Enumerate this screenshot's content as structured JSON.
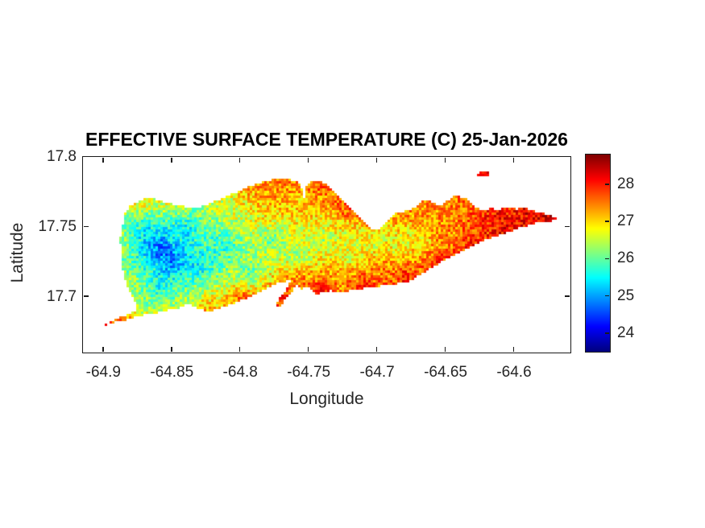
{
  "chart_data": {
    "type": "heatmap",
    "title": "EFFECTIVE SURFACE TEMPERATURE (C) 25-Jan-2026",
    "xlabel": "Longitude",
    "ylabel": "Latitude",
    "units": "C",
    "date": "25-Jan-2026",
    "xlim": [
      -64.9149,
      -64.5588
    ],
    "ylim": [
      17.66,
      17.8
    ],
    "xticks": [
      -64.9,
      -64.85,
      -64.8,
      -64.75,
      -64.7,
      -64.65,
      -64.6
    ],
    "xtick_labels": [
      "-64.9",
      "-64.85",
      "-64.8",
      "-64.75",
      "-64.7",
      "-64.65",
      "-64.6"
    ],
    "yticks": [
      17.7,
      17.75,
      17.8
    ],
    "ytick_labels": [
      "17.7",
      "17.75",
      "17.8"
    ],
    "grid": false,
    "colormap": "jet",
    "colorbar": {
      "min": 23.5,
      "max": 28.8,
      "ticks": [
        24,
        25,
        26,
        27,
        28
      ],
      "tick_labels": [
        "24",
        "25",
        "26",
        "27",
        "28"
      ],
      "position": "right"
    },
    "colors": {
      "background": "#ffffff",
      "axis": "#1a1a1a",
      "text": "#262626",
      "title": "#000000"
    },
    "noise_amplitude_c": 0.55,
    "islands": [
      {
        "outline": [
          [
            -64.8772,
            17.7672
          ],
          [
            -64.8701,
            17.77
          ],
          [
            -64.8625,
            17.77
          ],
          [
            -64.8548,
            17.7677
          ],
          [
            -64.8466,
            17.7654
          ],
          [
            -64.8389,
            17.7643
          ],
          [
            -64.8313,
            17.7637
          ],
          [
            -64.8242,
            17.766
          ],
          [
            -64.8171,
            17.7689
          ],
          [
            -64.81,
            17.7718
          ],
          [
            -64.803,
            17.7747
          ],
          [
            -64.7959,
            17.7781
          ],
          [
            -64.7894,
            17.7804
          ],
          [
            -64.7824,
            17.7827
          ],
          [
            -64.7753,
            17.7839
          ],
          [
            -64.7682,
            17.7844
          ],
          [
            -64.7623,
            17.7833
          ],
          [
            -64.7576,
            17.7816
          ],
          [
            -64.7553,
            17.7781
          ],
          [
            -64.7535,
            17.7706
          ],
          [
            -64.7517,
            17.7787
          ],
          [
            -64.7488,
            17.7816
          ],
          [
            -64.7452,
            17.7833
          ],
          [
            -64.7411,
            17.7821
          ],
          [
            -64.7376,
            17.7804
          ],
          [
            -64.7341,
            17.7775
          ],
          [
            -64.7299,
            17.7735
          ],
          [
            -64.7258,
            17.7695
          ],
          [
            -64.7217,
            17.7654
          ],
          [
            -64.7176,
            17.7614
          ],
          [
            -64.7134,
            17.7574
          ],
          [
            -64.7099,
            17.7533
          ],
          [
            -64.7064,
            17.7499
          ],
          [
            -64.7017,
            17.7482
          ],
          [
            -64.697,
            17.7493
          ],
          [
            -64.6922,
            17.7545
          ],
          [
            -64.6875,
            17.7591
          ],
          [
            -64.6828,
            17.7608
          ],
          [
            -64.6775,
            17.7614
          ],
          [
            -64.6728,
            17.7637
          ],
          [
            -64.6687,
            17.7677
          ],
          [
            -64.6634,
            17.7695
          ],
          [
            -64.6581,
            17.7672
          ],
          [
            -64.6534,
            17.7643
          ],
          [
            -64.6487,
            17.7689
          ],
          [
            -64.6434,
            17.7718
          ],
          [
            -64.6375,
            17.7712
          ],
          [
            -64.6322,
            17.7683
          ],
          [
            -64.6275,
            17.7637
          ],
          [
            -64.6222,
            17.7614
          ],
          [
            -64.6169,
            17.7637
          ],
          [
            -64.611,
            17.762
          ],
          [
            -64.6051,
            17.7643
          ],
          [
            -64.5986,
            17.7626
          ],
          [
            -64.5921,
            17.7637
          ],
          [
            -64.5862,
            17.7614
          ],
          [
            -64.5803,
            17.7603
          ],
          [
            -64.5744,
            17.7585
          ],
          [
            -64.5691,
            17.7562
          ],
          [
            -64.5733,
            17.7539
          ],
          [
            -64.5803,
            17.7539
          ],
          [
            -64.588,
            17.7516
          ],
          [
            -64.5956,
            17.7493
          ],
          [
            -64.6039,
            17.7464
          ],
          [
            -64.6121,
            17.7436
          ],
          [
            -64.6204,
            17.7407
          ],
          [
            -64.6286,
            17.7366
          ],
          [
            -64.6369,
            17.7326
          ],
          [
            -64.6451,
            17.7286
          ],
          [
            -64.6534,
            17.7245
          ],
          [
            -64.6616,
            17.7199
          ],
          [
            -64.6693,
            17.7153
          ],
          [
            -64.6758,
            17.7113
          ],
          [
            -64.6834,
            17.7096
          ],
          [
            -64.6917,
            17.7084
          ],
          [
            -64.6999,
            17.7073
          ],
          [
            -64.7081,
            17.7061
          ],
          [
            -64.7158,
            17.705
          ],
          [
            -64.7229,
            17.7038
          ],
          [
            -64.7282,
            17.7027
          ],
          [
            -64.7335,
            17.7044
          ],
          [
            -64.7394,
            17.7032
          ],
          [
            -64.7447,
            17.7015
          ],
          [
            -64.7494,
            17.7067
          ],
          [
            -64.7553,
            17.7055
          ],
          [
            -64.76,
            17.7101
          ],
          [
            -64.7653,
            17.7113
          ],
          [
            -64.7724,
            17.7096
          ],
          [
            -64.7794,
            17.7067
          ],
          [
            -64.7865,
            17.7032
          ],
          [
            -64.7936,
            17.6992
          ],
          [
            -64.8018,
            17.6963
          ],
          [
            -64.81,
            17.6934
          ],
          [
            -64.8171,
            17.6906
          ],
          [
            -64.8236,
            17.6894
          ],
          [
            -64.8307,
            17.6917
          ],
          [
            -64.8383,
            17.6946
          ],
          [
            -64.8454,
            17.6917
          ],
          [
            -64.8536,
            17.69
          ],
          [
            -64.8619,
            17.6883
          ],
          [
            -64.8689,
            17.6871
          ],
          [
            -64.8754,
            17.686
          ],
          [
            -64.8825,
            17.6836
          ],
          [
            -64.8901,
            17.6819
          ],
          [
            -64.8972,
            17.6802
          ],
          [
            -64.9008,
            17.6785
          ],
          [
            -64.8966,
            17.6813
          ],
          [
            -64.8901,
            17.6842
          ],
          [
            -64.8837,
            17.6865
          ],
          [
            -64.8784,
            17.6888
          ],
          [
            -64.8754,
            17.6917
          ],
          [
            -64.8772,
            17.6963
          ],
          [
            -64.8801,
            17.7015
          ],
          [
            -64.8825,
            17.7073
          ],
          [
            -64.8843,
            17.7136
          ],
          [
            -64.886,
            17.7199
          ],
          [
            -64.8866,
            17.7268
          ],
          [
            -64.8872,
            17.7338
          ],
          [
            -64.8878,
            17.7407
          ],
          [
            -64.8866,
            17.7476
          ],
          [
            -64.8854,
            17.7545
          ],
          [
            -64.8837,
            17.7608
          ],
          [
            -64.8807,
            17.7649
          ]
        ]
      },
      {
        "outline": [
          [
            -64.7617,
            17.7107
          ],
          [
            -64.7588,
            17.7084
          ],
          [
            -64.7635,
            17.7021
          ],
          [
            -64.7682,
            17.6963
          ],
          [
            -64.7718,
            17.6923
          ],
          [
            -64.7747,
            17.6946
          ],
          [
            -64.7694,
            17.7009
          ],
          [
            -64.7653,
            17.7067
          ],
          [
            -64.7641,
            17.7101
          ]
        ]
      },
      {
        "outline": [
          [
            -64.6269,
            17.7873
          ],
          [
            -64.6233,
            17.7896
          ],
          [
            -64.6192,
            17.7891
          ],
          [
            -64.6174,
            17.7873
          ],
          [
            -64.6204,
            17.7856
          ],
          [
            -64.6251,
            17.7856
          ]
        ]
      }
    ],
    "temperature_points": [
      [
        -64.8578,
        17.7338,
        23.9
      ],
      [
        -64.8489,
        17.7251,
        24.2
      ],
      [
        -64.8666,
        17.7424,
        24.6
      ],
      [
        -64.8401,
        17.7482,
        25.2
      ],
      [
        -64.8725,
        17.7539,
        25.4
      ],
      [
        -64.8283,
        17.7222,
        25.1
      ],
      [
        -64.8578,
        17.705,
        25.3
      ],
      [
        -64.8106,
        17.7366,
        25.3
      ],
      [
        -64.793,
        17.7165,
        25.5
      ],
      [
        -64.7753,
        17.7395,
        25.6
      ],
      [
        -64.7576,
        17.728,
        25.7
      ],
      [
        -64.74,
        17.7424,
        25.9
      ],
      [
        -64.7223,
        17.7309,
        26.1
      ],
      [
        -64.7017,
        17.7395,
        26.0
      ],
      [
        -64.6869,
        17.7338,
        26.4
      ],
      [
        -64.6781,
        17.7424,
        26.2
      ],
      [
        -64.6693,
        17.7395,
        26.8
      ],
      [
        -64.8077,
        17.7654,
        26.5
      ],
      [
        -64.7871,
        17.7712,
        27.2
      ],
      [
        -64.7665,
        17.7729,
        27.6
      ],
      [
        -64.793,
        17.781,
        27.7
      ],
      [
        -64.7723,
        17.7821,
        27.9
      ],
      [
        -64.7429,
        17.781,
        28.2
      ],
      [
        -64.7223,
        17.7637,
        28.3
      ],
      [
        -64.7076,
        17.7522,
        28.0
      ],
      [
        -64.8695,
        17.7683,
        27.4
      ],
      [
        -64.8489,
        17.7706,
        27.2
      ],
      [
        -64.8813,
        17.7649,
        27.0
      ],
      [
        -64.886,
        17.7395,
        26.6
      ],
      [
        -64.8825,
        17.7107,
        26.3
      ],
      [
        -64.8872,
        17.6831,
        27.9
      ],
      [
        -64.8978,
        17.6796,
        28.0
      ],
      [
        -64.8519,
        17.6906,
        26.6
      ],
      [
        -64.8254,
        17.6906,
        27.6
      ],
      [
        -64.7989,
        17.698,
        28.2
      ],
      [
        -64.7694,
        17.7004,
        28.6
      ],
      [
        -64.74,
        17.705,
        28.5
      ],
      [
        -64.7105,
        17.7096,
        28.4
      ],
      [
        -64.6781,
        17.7136,
        28.5
      ],
      [
        -64.6545,
        17.7222,
        28.3
      ],
      [
        -64.631,
        17.7338,
        28.3
      ],
      [
        -64.6074,
        17.7453,
        28.3
      ],
      [
        -64.5839,
        17.7556,
        28.4
      ],
      [
        -64.6457,
        17.7453,
        27.3
      ],
      [
        -64.6604,
        17.7597,
        27.4
      ],
      [
        -64.6398,
        17.7683,
        27.5
      ],
      [
        -64.6163,
        17.7597,
        28.1
      ],
      [
        -64.6928,
        17.7222,
        27.8
      ],
      [
        -64.7282,
        17.7165,
        27.3
      ],
      [
        -64.7576,
        17.7136,
        27.8
      ],
      [
        -64.6227,
        17.7879,
        28.2
      ],
      [
        -64.5703,
        17.7562,
        28.5
      ],
      [
        -64.7588,
        17.7683,
        26.9
      ],
      [
        -64.7164,
        17.7441,
        26.1
      ],
      [
        -64.681,
        17.758,
        27.8
      ]
    ]
  }
}
